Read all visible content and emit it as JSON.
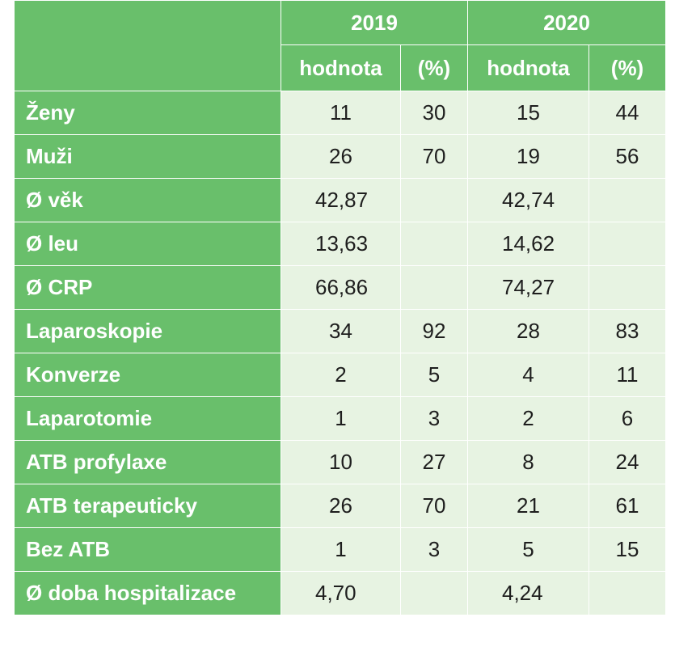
{
  "table": {
    "years": [
      "2019",
      "2020"
    ],
    "subheaders": [
      "hodnota",
      "(%)",
      "hodnota",
      "(%)"
    ],
    "corner": "",
    "rows": [
      {
        "label": "Ženy",
        "v2019": "11",
        "p2019": "30",
        "v2020": "15",
        "p2020": "44"
      },
      {
        "label": "Muži",
        "v2019": "26",
        "p2019": "70",
        "v2020": "19",
        "p2020": "56"
      },
      {
        "label": "Ø věk",
        "v2019": "42,87",
        "p2019": "",
        "v2020": "42,74",
        "p2020": ""
      },
      {
        "label": "Ø leu",
        "v2019": "13,63",
        "p2019": "",
        "v2020": "14,62",
        "p2020": ""
      },
      {
        "label": "Ø CRP",
        "v2019": "66,86",
        "p2019": "",
        "v2020": "74,27",
        "p2020": ""
      },
      {
        "label": "Laparoskopie",
        "v2019": "34",
        "p2019": "92",
        "v2020": "28",
        "p2020": "83"
      },
      {
        "label": "Konverze",
        "v2019": "2",
        "p2019": "5",
        "v2020": "4",
        "p2020": "11"
      },
      {
        "label": "Laparotomie",
        "v2019": "1",
        "p2019": "3",
        "v2020": "2",
        "p2020": "6"
      },
      {
        "label": "ATB profylaxe",
        "v2019": "10",
        "p2019": "27",
        "v2020": "8",
        "p2020": "24"
      },
      {
        "label": "ATB terapeuticky",
        "v2019": "26",
        "p2019": "70",
        "v2020": "21",
        "p2020": "61"
      },
      {
        "label": "Bez ATB",
        "v2019": "1",
        "p2019": "3",
        "v2020": "5",
        "p2020": "15"
      },
      {
        "label": "Ø doba hospitalizace",
        "v2019": "4,70",
        "p2019": "",
        "v2020": "4,24",
        "p2020": ""
      }
    ]
  },
  "colors": {
    "header_green": "#69bf6b",
    "cell_light_green": "#e7f3e2",
    "border": "#ffffff",
    "text_dark": "#1e1e1e"
  }
}
